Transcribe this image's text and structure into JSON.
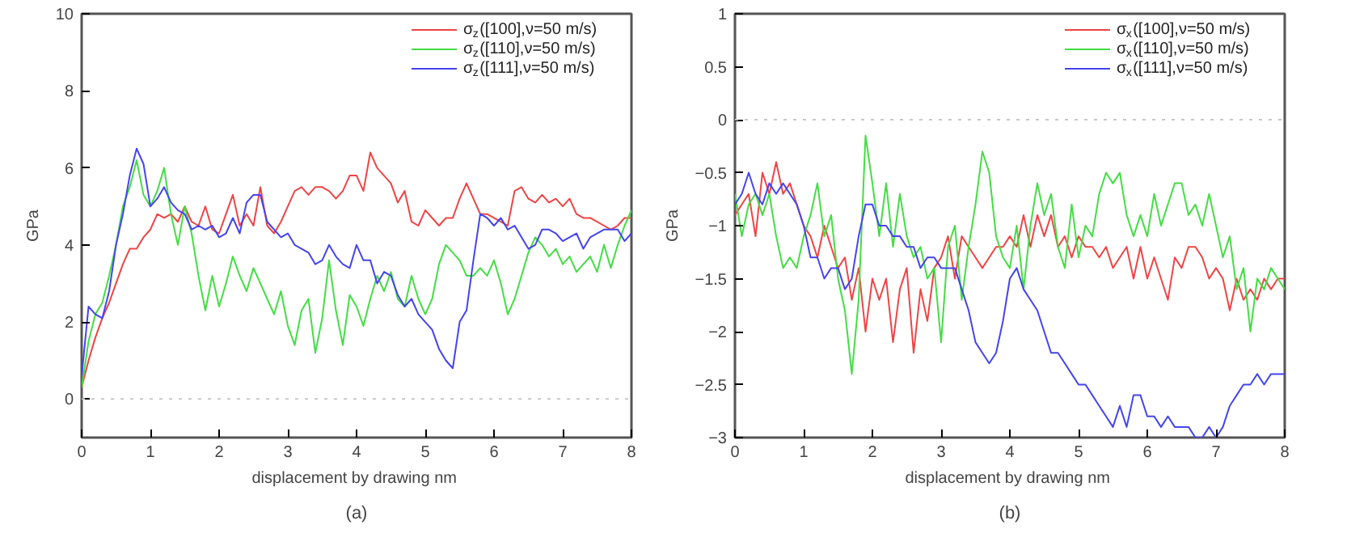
{
  "chart_data": [
    {
      "type": "line",
      "xlabel": "displacement by drawing  nm",
      "ylabel": "GPa",
      "annotations": [
        "(a)"
      ],
      "legend": "top right",
      "x": [
        0,
        0.1,
        0.2,
        0.3,
        0.4,
        0.5,
        0.6,
        0.7,
        0.8,
        0.9,
        1,
        1.1,
        1.2,
        1.3,
        1.4,
        1.5,
        1.6,
        1.7,
        1.8,
        1.9,
        2,
        2.1,
        2.2,
        2.3,
        2.4,
        2.5,
        2.6,
        2.7,
        2.8,
        2.9,
        3,
        3.1,
        3.2,
        3.3,
        3.4,
        3.5,
        3.6,
        3.7,
        3.8,
        3.9,
        4,
        4.1,
        4.2,
        4.3,
        4.4,
        4.5,
        4.6,
        4.7,
        4.8,
        4.9,
        5,
        5.1,
        5.2,
        5.3,
        5.4,
        5.5,
        5.6,
        5.7,
        5.8,
        5.9,
        6,
        6.1,
        6.2,
        6.3,
        6.4,
        6.5,
        6.6,
        6.7,
        6.8,
        6.9,
        7,
        7.1,
        7.2,
        7.3,
        7.4,
        7.5,
        7.6,
        7.7,
        7.8,
        7.9,
        8
      ],
      "xlim": [
        0,
        8
      ],
      "xticks": [
        0,
        1,
        2,
        3,
        4,
        5,
        6,
        7,
        8
      ],
      "ylim": [
        -1,
        10
      ],
      "yticks": [
        0,
        2,
        4,
        6,
        8,
        10
      ],
      "ref_lines": [
        {
          "axis": "y",
          "value": 0,
          "color": "#c8c8c8",
          "line_style": "dotted"
        }
      ],
      "series": [
        {
          "name": "σ$_{z}$([100],ν=50 m/s)",
          "color": "#ee4444",
          "values": [
            0.3,
            1,
            1.6,
            2.1,
            2.5,
            3,
            3.5,
            3.9,
            3.9,
            4.2,
            4.4,
            4.8,
            4.7,
            4.8,
            4.6,
            5.0,
            4.6,
            4.5,
            5.0,
            4.4,
            4.3,
            4.8,
            5.3,
            4.5,
            4.8,
            4.5,
            5.5,
            4.5,
            4.3,
            4.6,
            5.0,
            5.4,
            5.5,
            5.3,
            5.5,
            5.5,
            5.4,
            5.2,
            5.4,
            5.8,
            5.8,
            5.4,
            6.4,
            6.0,
            5.8,
            5.6,
            5.1,
            5.4,
            4.6,
            4.5,
            4.9,
            4.7,
            4.5,
            4.7,
            4.7,
            5.2,
            5.6,
            5.2,
            4.8,
            4.8,
            4.7,
            4.6,
            4.5,
            5.4,
            5.5,
            5.2,
            5.1,
            5.3,
            5.1,
            5.2,
            5.0,
            5.2,
            4.8,
            4.7,
            4.7,
            4.6,
            4.5,
            4.4,
            4.5,
            4.7,
            4.7
          ]
        },
        {
          "name": "σ$_{z}$([110],ν=50 m/s)",
          "color": "#44dd44",
          "values": [
            0.3,
            1.5,
            2.2,
            2.5,
            3.2,
            4.0,
            5.0,
            5.5,
            6.2,
            5.3,
            5.0,
            5.4,
            6.0,
            4.8,
            4.0,
            5.0,
            4.3,
            3.2,
            2.3,
            3.2,
            2.4,
            3.0,
            3.7,
            3.2,
            2.8,
            3.4,
            3.0,
            2.6,
            2.2,
            2.8,
            1.9,
            1.4,
            2.3,
            2.6,
            1.2,
            2.1,
            3.6,
            2.3,
            1.4,
            2.7,
            2.4,
            1.9,
            2.6,
            3.2,
            2.8,
            3.3,
            2.6,
            2.4,
            3.2,
            2.6,
            2.2,
            2.6,
            3.5,
            4.0,
            3.8,
            3.6,
            3.2,
            3.2,
            3.4,
            3.2,
            3.6,
            3.0,
            2.2,
            2.6,
            3.2,
            3.8,
            4.2,
            4.0,
            3.7,
            3.9,
            3.5,
            3.7,
            3.3,
            3.5,
            3.7,
            3.3,
            4.0,
            3.4,
            4.0,
            4.5,
            4.9
          ]
        },
        {
          "name": "σ$_{z}$([111],ν=50 m/s)",
          "color": "#4444ee",
          "values": [
            0.6,
            2.4,
            2.2,
            2.1,
            2.8,
            4.0,
            4.8,
            5.8,
            6.5,
            6.1,
            5.0,
            5.2,
            5.5,
            5.1,
            4.9,
            4.8,
            4.4,
            4.5,
            4.4,
            4.5,
            4.2,
            4.3,
            4.7,
            4.3,
            5.1,
            5.3,
            5.3,
            4.6,
            4.4,
            4.2,
            4.3,
            4.0,
            3.9,
            3.8,
            3.5,
            3.6,
            4.0,
            3.7,
            3.5,
            3.4,
            4.0,
            3.6,
            3.6,
            3.0,
            3.3,
            3.2,
            2.7,
            2.4,
            2.6,
            2.2,
            2.0,
            1.8,
            1.3,
            1.0,
            0.8,
            2.0,
            2.3,
            3.6,
            4.8,
            4.7,
            4.5,
            4.7,
            4.4,
            4.5,
            4.2,
            3.9,
            4.0,
            4.4,
            4.4,
            4.3,
            4.1,
            4.2,
            4.3,
            3.9,
            4.2,
            4.3,
            4.4,
            4.4,
            4.4,
            4.1,
            4.3
          ]
        }
      ]
    },
    {
      "type": "line",
      "xlabel": "displacement by drawing  nm",
      "ylabel": "GPa",
      "annotations": [
        "(b)"
      ],
      "legend": "top right",
      "x": [
        0,
        0.1,
        0.2,
        0.3,
        0.4,
        0.5,
        0.6,
        0.7,
        0.8,
        0.9,
        1,
        1.1,
        1.2,
        1.3,
        1.4,
        1.5,
        1.6,
        1.7,
        1.8,
        1.9,
        2,
        2.1,
        2.2,
        2.3,
        2.4,
        2.5,
        2.6,
        2.7,
        2.8,
        2.9,
        3,
        3.1,
        3.2,
        3.3,
        3.4,
        3.5,
        3.6,
        3.7,
        3.8,
        3.9,
        4,
        4.1,
        4.2,
        4.3,
        4.4,
        4.5,
        4.6,
        4.7,
        4.8,
        4.9,
        5,
        5.1,
        5.2,
        5.3,
        5.4,
        5.5,
        5.6,
        5.7,
        5.8,
        5.9,
        6,
        6.1,
        6.2,
        6.3,
        6.4,
        6.5,
        6.6,
        6.7,
        6.8,
        6.9,
        7,
        7.1,
        7.2,
        7.3,
        7.4,
        7.5,
        7.6,
        7.7,
        7.8,
        7.9,
        8
      ],
      "xlim": [
        0,
        8
      ],
      "xticks": [
        0,
        1,
        2,
        3,
        4,
        5,
        6,
        7,
        8
      ],
      "ylim": [
        -3,
        1
      ],
      "yticks": [
        -3,
        -2.5,
        -2,
        -1.5,
        -1,
        -0.5,
        0,
        0.5,
        1
      ],
      "ref_lines": [
        {
          "axis": "y",
          "value": 0,
          "color": "#c8c8c8",
          "line_style": "dotted"
        }
      ],
      "series": [
        {
          "name": "σ$_{x}$([100],ν=50 m/s)",
          "color": "#ee4444",
          "values": [
            -0.9,
            -0.8,
            -0.7,
            -1.1,
            -0.5,
            -0.7,
            -0.4,
            -0.7,
            -0.6,
            -0.8,
            -1.0,
            -1.1,
            -1.3,
            -1.0,
            -1.2,
            -1.4,
            -1.3,
            -1.7,
            -1.4,
            -2.0,
            -1.5,
            -1.7,
            -1.5,
            -2.1,
            -1.6,
            -1.4,
            -2.2,
            -1.6,
            -1.9,
            -1.4,
            -1.3,
            -1.1,
            -1.5,
            -1.1,
            -1.2,
            -1.3,
            -1.4,
            -1.3,
            -1.2,
            -1.2,
            -1.1,
            -1.2,
            -0.9,
            -1.2,
            -0.9,
            -1.1,
            -0.9,
            -1.2,
            -1.1,
            -1.3,
            -1.1,
            -1.2,
            -1.2,
            -1.3,
            -1.2,
            -1.4,
            -1.3,
            -1.2,
            -1.5,
            -1.2,
            -1.5,
            -1.3,
            -1.5,
            -1.7,
            -1.3,
            -1.4,
            -1.2,
            -1.2,
            -1.3,
            -1.5,
            -1.4,
            -1.5,
            -1.8,
            -1.5,
            -1.7,
            -1.6,
            -1.7,
            -1.5,
            -1.6,
            -1.5,
            -1.5
          ]
        },
        {
          "name": "σ$_{x}$([110],ν=50 m/s)",
          "color": "#44dd44",
          "values": [
            -0.7,
            -1.1,
            -0.8,
            -0.7,
            -0.9,
            -0.7,
            -1.1,
            -1.4,
            -1.3,
            -1.4,
            -1.1,
            -0.9,
            -0.6,
            -1.1,
            -0.9,
            -1.5,
            -1.8,
            -2.4,
            -1.7,
            -0.15,
            -0.6,
            -1.1,
            -0.6,
            -1.2,
            -0.7,
            -1.1,
            -1.3,
            -1.2,
            -1.5,
            -1.4,
            -2.1,
            -1.2,
            -1.0,
            -1.7,
            -1.2,
            -0.8,
            -0.3,
            -0.5,
            -1.1,
            -1.3,
            -1.4,
            -1.0,
            -1.6,
            -1.0,
            -0.6,
            -0.9,
            -0.7,
            -1.2,
            -1.4,
            -0.8,
            -1.3,
            -1.0,
            -1.1,
            -0.7,
            -0.5,
            -0.6,
            -0.5,
            -0.9,
            -1.1,
            -0.9,
            -1.1,
            -0.7,
            -1.0,
            -0.8,
            -0.6,
            -0.6,
            -0.9,
            -0.8,
            -1.0,
            -0.7,
            -1.0,
            -1.3,
            -1.1,
            -1.6,
            -1.4,
            -2.0,
            -1.5,
            -1.6,
            -1.4,
            -1.5,
            -1.6
          ]
        },
        {
          "name": "σ$_{x}$([111],ν=50 m/s)",
          "color": "#4444ee",
          "values": [
            -0.8,
            -0.7,
            -0.5,
            -0.7,
            -0.8,
            -0.6,
            -0.7,
            -0.6,
            -0.7,
            -0.8,
            -1.0,
            -1.3,
            -1.3,
            -1.5,
            -1.4,
            -1.4,
            -1.6,
            -1.5,
            -1.1,
            -0.8,
            -0.8,
            -1.0,
            -1.0,
            -1.1,
            -1.1,
            -1.2,
            -1.2,
            -1.4,
            -1.3,
            -1.3,
            -1.4,
            -1.4,
            -1.4,
            -1.6,
            -1.8,
            -2.1,
            -2.2,
            -2.3,
            -2.2,
            -1.9,
            -1.5,
            -1.4,
            -1.6,
            -1.7,
            -1.8,
            -2.0,
            -2.2,
            -2.2,
            -2.3,
            -2.4,
            -2.5,
            -2.5,
            -2.6,
            -2.7,
            -2.8,
            -2.9,
            -2.7,
            -2.9,
            -2.6,
            -2.6,
            -2.8,
            -2.8,
            -2.9,
            -2.8,
            -2.9,
            -2.9,
            -2.9,
            -3.0,
            -3.0,
            -2.9,
            -3.0,
            -2.9,
            -2.7,
            -2.6,
            -2.5,
            -2.5,
            -2.4,
            -2.5,
            -2.4,
            -2.4,
            -2.4
          ]
        }
      ]
    }
  ]
}
